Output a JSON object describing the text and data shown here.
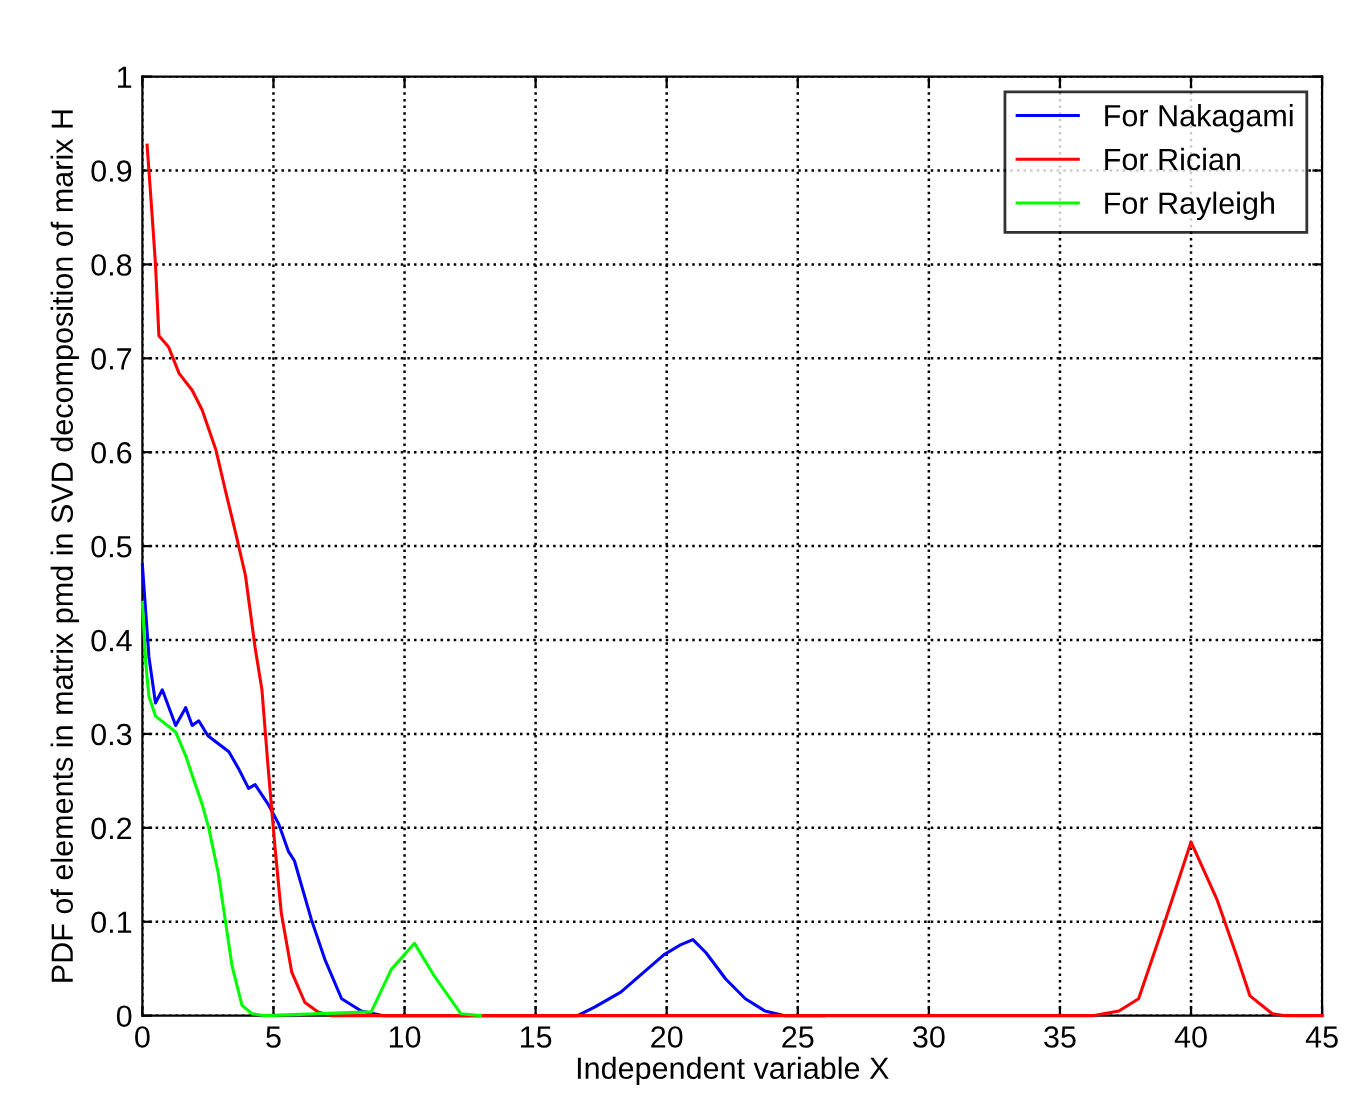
{
  "chart_data": {
    "type": "line",
    "xlabel": "Independent variable X",
    "ylabel": "PDF of elements in matrix pmd in SVD decomposition of marix H",
    "xlim": [
      0,
      45
    ],
    "ylim": [
      0,
      1
    ],
    "xticks": [
      0,
      5,
      10,
      15,
      20,
      25,
      30,
      35,
      40,
      45
    ],
    "yticks": [
      0,
      {
        "value": 0.1,
        "label": "0.1"
      },
      {
        "value": 0.2,
        "label": "0.2"
      },
      {
        "value": 0.3,
        "label": "0.3"
      },
      {
        "value": 0.4,
        "label": "0.4"
      },
      {
        "value": 0.5,
        "label": "0.5"
      },
      {
        "value": 0.6,
        "label": "0.6"
      },
      {
        "value": 0.7,
        "label": "0.7"
      },
      {
        "value": 0.8,
        "label": "0.8"
      },
      {
        "value": 0.9,
        "label": "0.9"
      },
      1
    ],
    "grid": true,
    "legend": "top right",
    "line_style": "solid",
    "series": [
      {
        "name": "For Nakagami",
        "color": "#0000ff",
        "x": [
          0,
          0.25,
          0.5,
          0.76,
          1.27,
          1.65,
          1.9,
          2.15,
          2.5,
          3.3,
          3.67,
          4.05,
          4.3,
          4.8,
          5.2,
          5.57,
          5.8,
          6.45,
          6.96,
          7.6,
          8.35,
          9.2,
          16.6,
          17.25,
          18.25,
          19.9,
          20.5,
          21,
          21.5,
          22.25,
          23,
          23.75,
          24.5,
          26
        ],
        "values": [
          0.48,
          0.382,
          0.333,
          0.347,
          0.309,
          0.328,
          0.309,
          0.314,
          0.298,
          0.281,
          0.263,
          0.242,
          0.246,
          0.225,
          0.204,
          0.175,
          0.165,
          0.102,
          0.06,
          0.018,
          0.005,
          0,
          0,
          0.009,
          0.025,
          0.065,
          0.075,
          0.081,
          0.067,
          0.039,
          0.018,
          0.005,
          0,
          0
        ]
      },
      {
        "name": "For Rician",
        "color": "#ff0000",
        "x": [
          0.18,
          0.25,
          0.38,
          0.5,
          0.63,
          1.0,
          1.4,
          1.9,
          2.28,
          2.8,
          3.16,
          3.55,
          3.93,
          4.3,
          4.56,
          4.8,
          5.06,
          5.3,
          5.7,
          6.2,
          6.7,
          7.2,
          36.25,
          37.25,
          38,
          39,
          40,
          41,
          41.75,
          42.25,
          43.1,
          43.6,
          45
        ],
        "values": [
          0.927,
          0.9,
          0.849,
          0.8,
          0.724,
          0.712,
          0.684,
          0.666,
          0.645,
          0.603,
          0.56,
          0.515,
          0.469,
          0.392,
          0.347,
          0.263,
          0.179,
          0.109,
          0.046,
          0.014,
          0.004,
          0,
          0,
          0.005,
          0.018,
          0.1,
          0.185,
          0.123,
          0.063,
          0.021,
          0.002,
          0,
          0
        ]
      },
      {
        "name": "For Rayleigh",
        "color": "#00ff00",
        "x": [
          0,
          0.13,
          0.25,
          0.5,
          1.27,
          1.65,
          1.9,
          2.28,
          2.53,
          2.9,
          3.16,
          3.42,
          3.8,
          4.18,
          4.68,
          8.73,
          9.49,
          10.38,
          11.14,
          12.15,
          12.9
        ],
        "values": [
          0.44,
          0.375,
          0.34,
          0.319,
          0.302,
          0.277,
          0.256,
          0.225,
          0.2,
          0.151,
          0.102,
          0.053,
          0.011,
          0.002,
          0,
          0.004,
          0.049,
          0.077,
          0.042,
          0.002,
          0
        ]
      }
    ]
  }
}
